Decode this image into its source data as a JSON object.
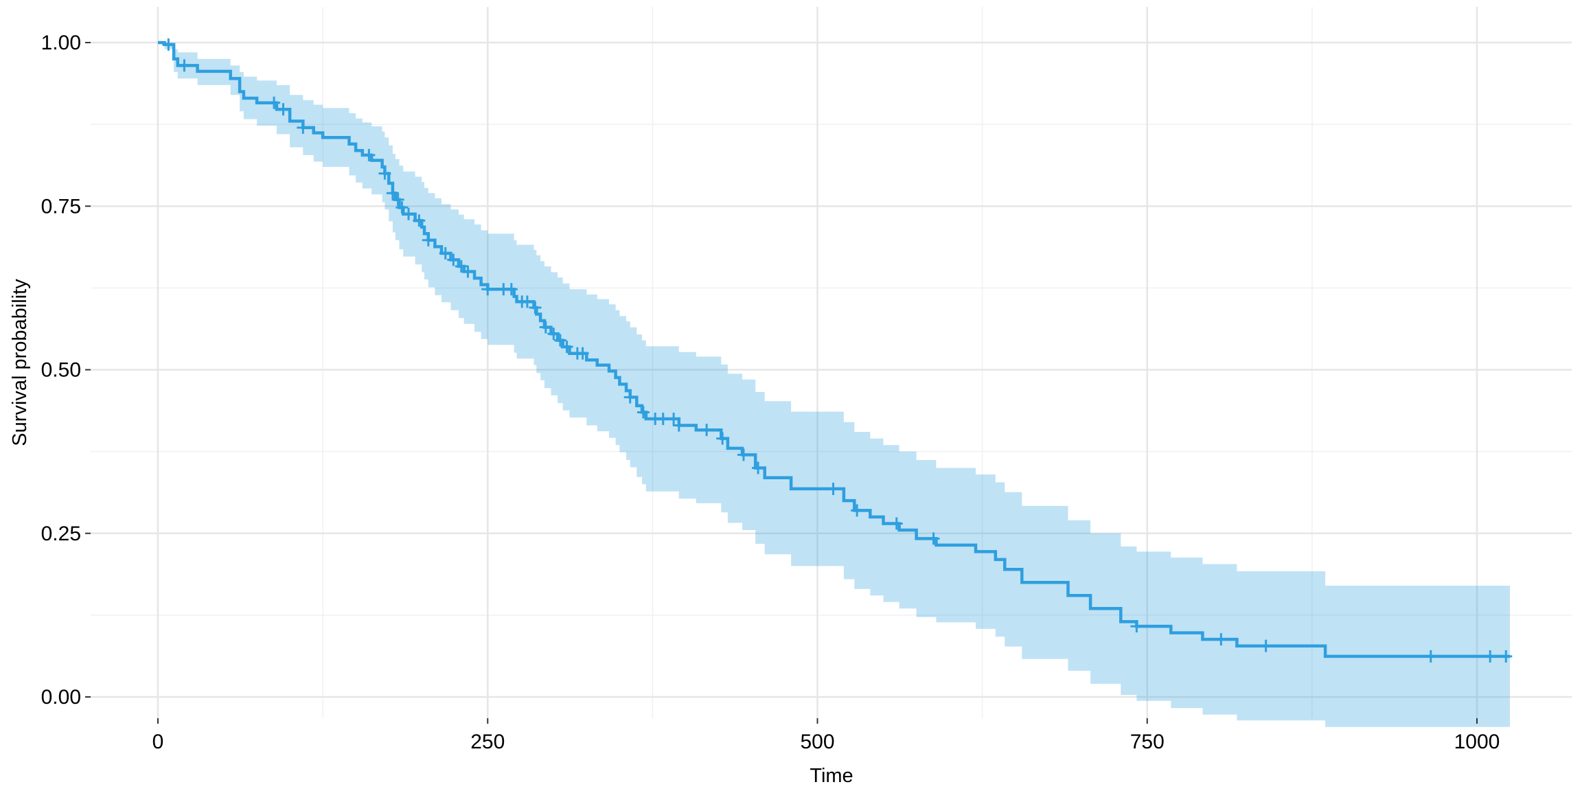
{
  "chart_data": {
    "type": "line",
    "subtype": "kaplan-meier survival curve with confidence band",
    "xlabel": "Time",
    "ylabel": "Survival probability",
    "xlim": [
      -50,
      1075
    ],
    "ylim": [
      -0.05,
      1.05
    ],
    "x_ticks": [
      0,
      250,
      500,
      750,
      1000
    ],
    "x_tick_labels": [
      "0",
      "250",
      "500",
      "750",
      "1000"
    ],
    "y_ticks": [
      0,
      0.25,
      0.5,
      0.75,
      1.0
    ],
    "y_tick_labels": [
      "0.00",
      "0.25",
      "0.50",
      "0.75",
      "1.00"
    ],
    "grid": true,
    "legend": "none",
    "colors": {
      "curve": "#2E9FDF",
      "band": "#2E9FDF",
      "band_opacity": 0.3
    },
    "series": [
      {
        "steps": [
          [
            0,
            1.0
          ],
          [
            5,
            0.997
          ],
          [
            12,
            0.975
          ],
          [
            15,
            0.965
          ],
          [
            30,
            0.956
          ],
          [
            55,
            0.945
          ],
          [
            62,
            0.925
          ],
          [
            65,
            0.915
          ],
          [
            75,
            0.908
          ],
          [
            90,
            0.898
          ],
          [
            100,
            0.88
          ],
          [
            110,
            0.87
          ],
          [
            118,
            0.862
          ],
          [
            125,
            0.855
          ],
          [
            145,
            0.845
          ],
          [
            150,
            0.835
          ],
          [
            155,
            0.828
          ],
          [
            162,
            0.82
          ],
          [
            170,
            0.81
          ],
          [
            172,
            0.8
          ],
          [
            175,
            0.785
          ],
          [
            178,
            0.77
          ],
          [
            180,
            0.76
          ],
          [
            183,
            0.748
          ],
          [
            186,
            0.738
          ],
          [
            195,
            0.728
          ],
          [
            200,
            0.718
          ],
          [
            202,
            0.708
          ],
          [
            205,
            0.698
          ],
          [
            210,
            0.688
          ],
          [
            215,
            0.678
          ],
          [
            222,
            0.668
          ],
          [
            228,
            0.658
          ],
          [
            232,
            0.65
          ],
          [
            240,
            0.64
          ],
          [
            245,
            0.63
          ],
          [
            250,
            0.623
          ],
          [
            270,
            0.612
          ],
          [
            272,
            0.604
          ],
          [
            285,
            0.595
          ],
          [
            287,
            0.585
          ],
          [
            290,
            0.575
          ],
          [
            293,
            0.565
          ],
          [
            298,
            0.555
          ],
          [
            303,
            0.545
          ],
          [
            307,
            0.535
          ],
          [
            312,
            0.525
          ],
          [
            325,
            0.515
          ],
          [
            333,
            0.507
          ],
          [
            342,
            0.498
          ],
          [
            347,
            0.488
          ],
          [
            350,
            0.478
          ],
          [
            355,
            0.468
          ],
          [
            358,
            0.458
          ],
          [
            363,
            0.445
          ],
          [
            367,
            0.435
          ],
          [
            370,
            0.425
          ],
          [
            395,
            0.415
          ],
          [
            408,
            0.408
          ],
          [
            427,
            0.395
          ],
          [
            432,
            0.38
          ],
          [
            443,
            0.37
          ],
          [
            453,
            0.35
          ],
          [
            460,
            0.335
          ],
          [
            480,
            0.318
          ],
          [
            520,
            0.3
          ],
          [
            528,
            0.285
          ],
          [
            540,
            0.275
          ],
          [
            550,
            0.265
          ],
          [
            562,
            0.255
          ],
          [
            575,
            0.242
          ],
          [
            590,
            0.232
          ],
          [
            620,
            0.222
          ],
          [
            635,
            0.21
          ],
          [
            642,
            0.195
          ],
          [
            655,
            0.175
          ],
          [
            690,
            0.155
          ],
          [
            707,
            0.135
          ],
          [
            730,
            0.115
          ],
          [
            742,
            0.108
          ],
          [
            768,
            0.098
          ],
          [
            792,
            0.088
          ],
          [
            818,
            0.078
          ],
          [
            885,
            0.062
          ],
          [
            1025,
            0.062
          ]
        ],
        "band": [
          [
            0,
            1.0,
            1.0
          ],
          [
            5,
            1.0,
            0.99
          ],
          [
            12,
            0.99,
            0.955
          ],
          [
            15,
            0.985,
            0.945
          ],
          [
            30,
            0.975,
            0.935
          ],
          [
            55,
            0.965,
            0.92
          ],
          [
            62,
            0.955,
            0.895
          ],
          [
            65,
            0.948,
            0.883
          ],
          [
            75,
            0.942,
            0.873
          ],
          [
            90,
            0.935,
            0.86
          ],
          [
            100,
            0.92,
            0.84
          ],
          [
            110,
            0.912,
            0.828
          ],
          [
            118,
            0.905,
            0.818
          ],
          [
            125,
            0.9,
            0.81
          ],
          [
            145,
            0.892,
            0.797
          ],
          [
            150,
            0.884,
            0.786
          ],
          [
            155,
            0.878,
            0.777
          ],
          [
            162,
            0.872,
            0.768
          ],
          [
            170,
            0.864,
            0.756
          ],
          [
            172,
            0.855,
            0.745
          ],
          [
            175,
            0.843,
            0.727
          ],
          [
            178,
            0.83,
            0.71
          ],
          [
            180,
            0.822,
            0.698
          ],
          [
            183,
            0.812,
            0.684
          ],
          [
            186,
            0.803,
            0.673
          ],
          [
            195,
            0.795,
            0.661
          ],
          [
            200,
            0.787,
            0.649
          ],
          [
            202,
            0.778,
            0.638
          ],
          [
            205,
            0.77,
            0.626
          ],
          [
            210,
            0.762,
            0.614
          ],
          [
            215,
            0.753,
            0.603
          ],
          [
            222,
            0.745,
            0.591
          ],
          [
            228,
            0.737,
            0.579
          ],
          [
            232,
            0.73,
            0.57
          ],
          [
            240,
            0.722,
            0.558
          ],
          [
            245,
            0.713,
            0.547
          ],
          [
            250,
            0.708,
            0.538
          ],
          [
            270,
            0.698,
            0.526
          ],
          [
            272,
            0.691,
            0.517
          ],
          [
            285,
            0.683,
            0.507
          ],
          [
            287,
            0.675,
            0.495
          ],
          [
            290,
            0.666,
            0.484
          ],
          [
            293,
            0.658,
            0.472
          ],
          [
            298,
            0.649,
            0.461
          ],
          [
            303,
            0.641,
            0.449
          ],
          [
            307,
            0.632,
            0.438
          ],
          [
            312,
            0.623,
            0.427
          ],
          [
            325,
            0.615,
            0.415
          ],
          [
            333,
            0.608,
            0.406
          ],
          [
            342,
            0.6,
            0.396
          ],
          [
            347,
            0.591,
            0.385
          ],
          [
            350,
            0.582,
            0.374
          ],
          [
            355,
            0.574,
            0.362
          ],
          [
            358,
            0.565,
            0.351
          ],
          [
            363,
            0.554,
            0.336
          ],
          [
            367,
            0.545,
            0.325
          ],
          [
            370,
            0.536,
            0.314
          ],
          [
            395,
            0.527,
            0.303
          ],
          [
            408,
            0.52,
            0.296
          ],
          [
            427,
            0.508,
            0.282
          ],
          [
            432,
            0.494,
            0.266
          ],
          [
            443,
            0.485,
            0.255
          ],
          [
            453,
            0.466,
            0.234
          ],
          [
            460,
            0.452,
            0.218
          ],
          [
            480,
            0.436,
            0.2
          ],
          [
            520,
            0.42,
            0.18
          ],
          [
            528,
            0.405,
            0.165
          ],
          [
            540,
            0.395,
            0.155
          ],
          [
            550,
            0.385,
            0.145
          ],
          [
            562,
            0.375,
            0.135
          ],
          [
            575,
            0.362,
            0.122
          ],
          [
            590,
            0.35,
            0.114
          ],
          [
            620,
            0.34,
            0.104
          ],
          [
            635,
            0.328,
            0.092
          ],
          [
            642,
            0.313,
            0.077
          ],
          [
            655,
            0.292,
            0.058
          ],
          [
            690,
            0.27,
            0.04
          ],
          [
            707,
            0.25,
            0.02
          ],
          [
            730,
            0.23,
            0.003
          ],
          [
            742,
            0.222,
            -0.006
          ],
          [
            768,
            0.213,
            -0.017
          ],
          [
            792,
            0.203,
            -0.027
          ],
          [
            818,
            0.192,
            -0.036
          ],
          [
            885,
            0.17,
            -0.046
          ],
          [
            1025,
            0.17,
            -0.046
          ]
        ],
        "censor_times": [
          8,
          20,
          88,
          95,
          110,
          160,
          172,
          178,
          182,
          185,
          190,
          198,
          205,
          218,
          224,
          230,
          235,
          250,
          262,
          268,
          276,
          280,
          286,
          294,
          300,
          305,
          310,
          318,
          322,
          358,
          368,
          377,
          383,
          391,
          395,
          416,
          428,
          444,
          455,
          512,
          530,
          560,
          588,
          742,
          806,
          840,
          965,
          1010,
          1022
        ]
      }
    ]
  }
}
